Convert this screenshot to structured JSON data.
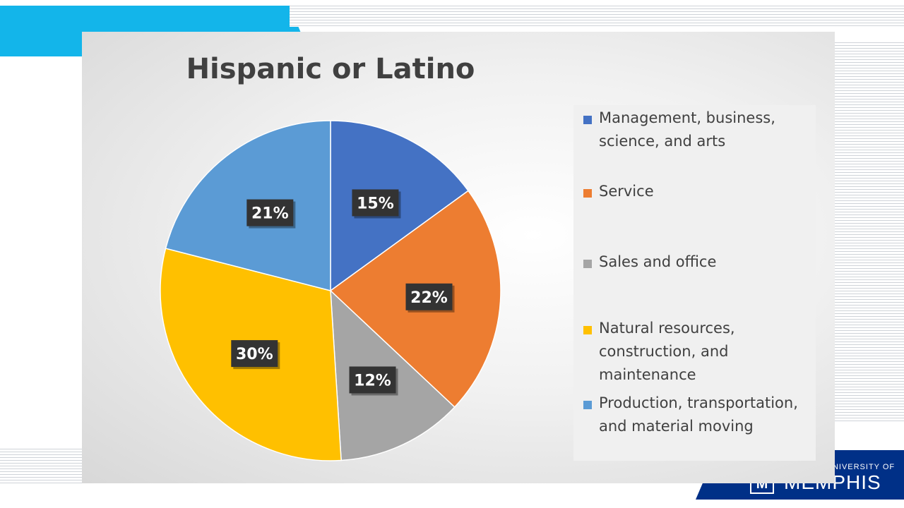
{
  "colors": {
    "accent_cyan": "#13b5ea",
    "brand_navy": "#003087"
  },
  "logo": {
    "line1": "UNIVERSITY OF",
    "line2": "MEMPHIS",
    "mark": "M",
    "icon": "university-of-memphis-logo"
  },
  "chart_data": {
    "type": "pie",
    "title": "Hispanic or Latino",
    "start_angle_deg": 0,
    "direction": "clockwise",
    "categories": [
      "Management, business, science, and arts",
      "Service",
      "Sales and office",
      "Natural resources, construction, and maintenance",
      "Production, transportation, and material moving"
    ],
    "values": [
      15,
      22,
      12,
      30,
      21
    ],
    "data_labels": [
      "15%",
      "22%",
      "12%",
      "30%",
      "21%"
    ],
    "colors": [
      "#4472c4",
      "#ed7d31",
      "#a5a5a5",
      "#ffc000",
      "#5b9bd5"
    ],
    "legend_position": "right"
  }
}
